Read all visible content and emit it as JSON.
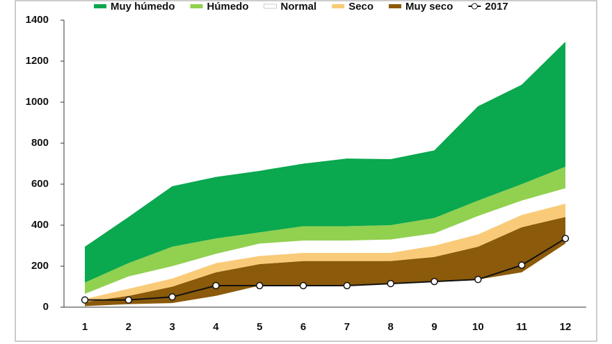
{
  "chart_data": {
    "type": "area",
    "categories": [
      "1",
      "2",
      "3",
      "4",
      "5",
      "6",
      "7",
      "8",
      "9",
      "10",
      "11",
      "12"
    ],
    "baseline": [
      5,
      15,
      20,
      55,
      105,
      105,
      105,
      115,
      125,
      135,
      170,
      310
    ],
    "series": [
      {
        "name": "Muy seco",
        "color": "#8b5a0a",
        "values": [
          25,
          55,
          100,
          170,
          210,
          225,
          225,
          225,
          245,
          295,
          390,
          440
        ]
      },
      {
        "name": "Seco",
        "color": "#f9cb78",
        "values": [
          40,
          90,
          140,
          215,
          250,
          265,
          265,
          265,
          300,
          355,
          450,
          505
        ]
      },
      {
        "name": "Normal",
        "color": "#ffffff",
        "values": [
          65,
          150,
          200,
          260,
          310,
          325,
          325,
          330,
          360,
          445,
          520,
          580
        ]
      },
      {
        "name": "Húmedo",
        "color": "#92d050",
        "values": [
          120,
          215,
          295,
          335,
          365,
          395,
          395,
          400,
          435,
          520,
          600,
          685
        ]
      },
      {
        "name": "Muy húmedo",
        "color": "#0aa84f",
        "values": [
          295,
          440,
          590,
          635,
          665,
          700,
          725,
          722,
          765,
          980,
          1085,
          1295
        ]
      }
    ],
    "line": {
      "name": "2017",
      "color": "#111111",
      "values": [
        35,
        35,
        50,
        105,
        105,
        105,
        105,
        115,
        125,
        135,
        205,
        335
      ]
    },
    "ylim": [
      0,
      1400
    ],
    "yticks": [
      0,
      200,
      400,
      600,
      800,
      1000,
      1200,
      1400
    ],
    "grid": false
  }
}
